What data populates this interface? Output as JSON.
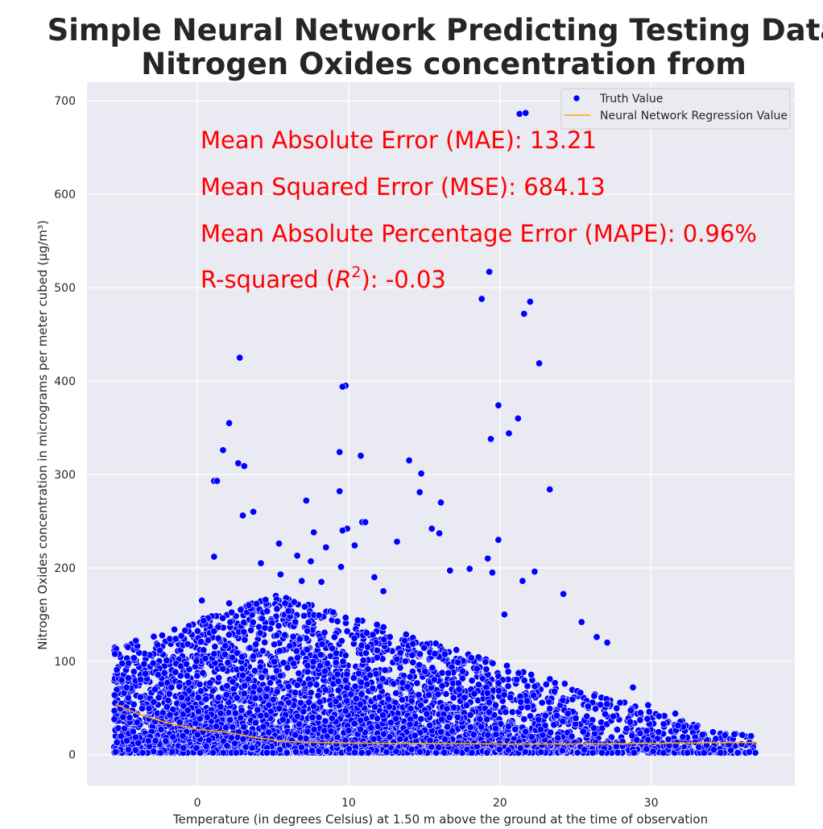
{
  "chart_data": {
    "type": "scatter",
    "title_lines": [
      "Simple Neural Network Predicting Testing Data",
      "Nitrogen Oxides concentration from Temperature"
    ],
    "xlabel": "Temperature (in degrees Celsius) at 1.50 m above the ground at the time of observation",
    "ylabel": "Nitrogen Oxides concentration in micrograms per meter cubed (µg/m³)",
    "xlim": [
      -7.3,
      39.5
    ],
    "ylim": [
      -33,
      720
    ],
    "x_ticks": [
      0,
      10,
      20,
      30
    ],
    "y_ticks": [
      0,
      100,
      200,
      300,
      400,
      500,
      600,
      700
    ],
    "grid": true,
    "legend_placement": "top-right",
    "legend": {
      "scatter_label": "Truth Value",
      "line_label": "Neural Network Regression Value"
    },
    "colors": {
      "truth": "#0000ff",
      "regression": "#ffa500",
      "annotation": "#ff0000",
      "axes_background": "#eaeaf2",
      "grid": "#ffffff"
    },
    "annotations": {
      "mae": "Mean Absolute Error (MAE): 13.21",
      "mse": "Mean Squared Error (MSE): 684.13",
      "mape": "Mean Absolute Percentage Error (MAPE): 0.96%",
      "r2_prefix": "R-squared (",
      "r2_symbol": "R",
      "r2_exp": "2",
      "r2_suffix": "): -0.03"
    },
    "series": [
      {
        "name": "Neural Network Regression Value",
        "type": "line",
        "x": [
          -5.4,
          -4,
          -2,
          0,
          2,
          4,
          6,
          8,
          10,
          12,
          15,
          20,
          25,
          30,
          35,
          37
        ],
        "y": [
          54,
          44,
          34,
          27,
          24,
          18,
          14,
          13,
          12.5,
          12,
          12,
          11.5,
          11.5,
          12,
          13,
          13
        ]
      },
      {
        "name": "Truth Value",
        "type": "scatter",
        "outliers": {
          "x": [
            21.3,
            21.7,
            19.3,
            18.8,
            22,
            21.6,
            2.8,
            22.6,
            9.8,
            9.6,
            19.9,
            21.2,
            20.6,
            19.4,
            2.1,
            1.7,
            9.4,
            10.8,
            14,
            2.7,
            3.1,
            14.8,
            23.3,
            1.1,
            1.3,
            9.4,
            14.7,
            16.1,
            3,
            3.7,
            7.2,
            10.9,
            11.1,
            15.5,
            9.9,
            16,
            7.7,
            9.6,
            13.2,
            19.9,
            10.4,
            1.1,
            5.4,
            6.6,
            7.5,
            8.5,
            9.5,
            4.2,
            5.5,
            6.9,
            11.7,
            18,
            19.5,
            16.7,
            22.3,
            21.5,
            24.2,
            19.2,
            0.3,
            2.1,
            8.2,
            3.4,
            5.8,
            12.3,
            20.3,
            25.4,
            26.4,
            27.1,
            28.8,
            29.8,
            31.6
          ],
          "y": [
            686,
            687,
            517,
            488,
            485,
            472,
            425,
            419,
            395,
            394,
            374,
            360,
            344,
            338,
            355,
            326,
            324,
            320,
            315,
            312,
            309,
            301,
            284,
            293,
            293,
            282,
            281,
            270,
            256,
            260,
            272,
            249,
            249,
            242,
            242,
            237,
            238,
            240,
            228,
            230,
            224,
            212,
            226,
            213,
            207,
            222,
            201,
            205,
            193,
            186,
            190,
            199,
            195,
            197,
            196,
            186,
            172,
            210,
            165,
            162,
            185,
            160,
            162,
            175,
            150,
            142,
            126,
            120,
            72,
            53,
            44
          ]
        },
        "cloud": {
          "x_range": [
            -5.5,
            37
          ],
          "y_range": [
            2,
            170
          ],
          "point_count": 5000
        }
      }
    ]
  }
}
